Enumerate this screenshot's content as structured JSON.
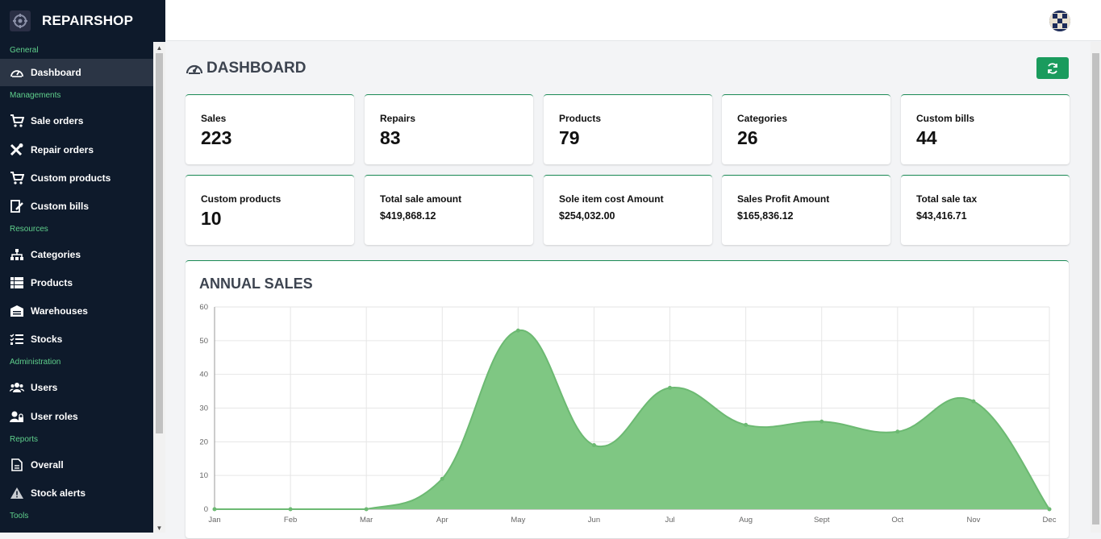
{
  "app": {
    "title": "REPAIRSHOP"
  },
  "sidebar": {
    "sections": [
      {
        "label": "General",
        "items": [
          {
            "label": "Dashboard",
            "icon": "dashboard-icon",
            "active": true
          }
        ]
      },
      {
        "label": "Managements",
        "items": [
          {
            "label": "Sale orders",
            "icon": "cart-icon"
          },
          {
            "label": "Repair orders",
            "icon": "tools-icon"
          },
          {
            "label": "Custom products",
            "icon": "cart-icon"
          },
          {
            "label": "Custom bills",
            "icon": "edit-bill-icon"
          }
        ]
      },
      {
        "label": "Resources",
        "items": [
          {
            "label": "Categories",
            "icon": "sitemap-icon"
          },
          {
            "label": "Products",
            "icon": "table-list-icon"
          },
          {
            "label": "Warehouses",
            "icon": "warehouse-icon"
          },
          {
            "label": "Stocks",
            "icon": "task-list-icon"
          }
        ]
      },
      {
        "label": "Administration",
        "items": [
          {
            "label": "Users",
            "icon": "users-icon"
          },
          {
            "label": "User roles",
            "icon": "user-lock-icon"
          }
        ]
      },
      {
        "label": "Reports",
        "items": [
          {
            "label": "Overall",
            "icon": "document-icon"
          },
          {
            "label": "Stock alerts",
            "icon": "warning-icon"
          }
        ]
      },
      {
        "label": "Tools",
        "items": []
      }
    ]
  },
  "main": {
    "title": "DASHBOARD",
    "refresh_icon": "refresh-icon",
    "stats": [
      {
        "label": "Sales",
        "value": "223"
      },
      {
        "label": "Repairs",
        "value": "83"
      },
      {
        "label": "Products",
        "value": "79"
      },
      {
        "label": "Categories",
        "value": "26"
      },
      {
        "label": "Custom bills",
        "value": "44"
      },
      {
        "label": "Custom products",
        "value": "10"
      }
    ],
    "amounts": [
      {
        "label": "Total sale amount",
        "value": "$419,868.12"
      },
      {
        "label": "Sole item cost Amount",
        "value": "$254,032.00"
      },
      {
        "label": "Sales Profit Amount",
        "value": "$165,836.12"
      },
      {
        "label": "Total sale tax",
        "value": "$43,416.71"
      }
    ]
  },
  "colors": {
    "accent": "#1a9b5d",
    "sidebar": "#0e1a2b",
    "area_fill": "#7fc783",
    "area_line": "#6cb972"
  },
  "chart_data": {
    "type": "area",
    "title": "ANNUAL SALES",
    "categories": [
      "Jan",
      "Feb",
      "Mar",
      "Apr",
      "May",
      "Jun",
      "Jul",
      "Aug",
      "Sept",
      "Oct",
      "Nov",
      "Dec"
    ],
    "values": [
      0,
      0,
      0,
      9,
      53,
      19,
      36,
      25,
      26,
      23,
      32,
      0
    ],
    "ylim": [
      0,
      60
    ],
    "yticks": [
      0,
      10,
      20,
      30,
      40,
      50,
      60
    ],
    "grid": true
  }
}
